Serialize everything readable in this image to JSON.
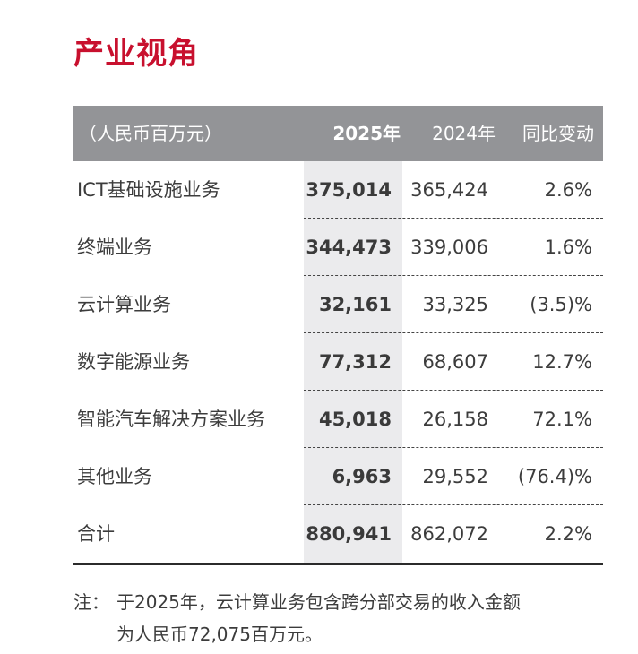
{
  "title": "产业视角",
  "table": {
    "header": {
      "unit": "（人民币百万元）",
      "col_2025": "2025年",
      "col_2024": "2024年",
      "col_change": "同比变动"
    },
    "rows": [
      {
        "name": "ICT基础设施业务",
        "y2025": "375,014",
        "y2024": "365,424",
        "change": "2.6%"
      },
      {
        "name": "终端业务",
        "y2025": "344,473",
        "y2024": "339,006",
        "change": "1.6%"
      },
      {
        "name": "云计算业务",
        "y2025": "32,161",
        "y2024": "33,325",
        "change": "(3.5)%"
      },
      {
        "name": "数字能源业务",
        "y2025": "77,312",
        "y2024": "68,607",
        "change": "12.7%"
      },
      {
        "name": "智能汽车解决方案业务",
        "y2025": "45,018",
        "y2024": "26,158",
        "change": "72.1%"
      },
      {
        "name": "其他业务",
        "y2025": "6,963",
        "y2024": "29,552",
        "change": "(76.4)%"
      },
      {
        "name": "合计",
        "y2025": "880,941",
        "y2024": "862,072",
        "change": "2.2%"
      }
    ]
  },
  "note": {
    "label": "注：",
    "line1": "于2025年，云计算业务包含跨分部交易的收入金额",
    "line2": "为人民币72,075百万元。"
  },
  "colors": {
    "title": "#c8102e",
    "header_bg": "#939497",
    "highlight_col": "#ebebed"
  }
}
